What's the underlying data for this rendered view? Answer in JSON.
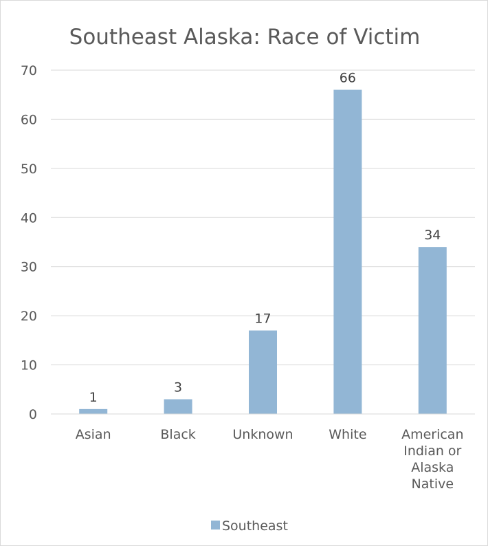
{
  "chart_data": {
    "type": "bar",
    "title": "Southeast Alaska: Race of Victim",
    "categories": [
      "Asian",
      "Black",
      "Unknown",
      "White",
      "American Indian or Alaska Native"
    ],
    "category_label_lines": [
      [
        "Asian"
      ],
      [
        "Black"
      ],
      [
        "Unknown"
      ],
      [
        "White"
      ],
      [
        "American",
        "Indian or",
        "Alaska",
        "Native"
      ]
    ],
    "series": [
      {
        "name": "Southeast",
        "values": [
          1,
          3,
          17,
          66,
          34
        ],
        "color": "#92b6d5"
      }
    ],
    "data_labels": true,
    "xlabel": "",
    "ylabel": "",
    "ylim": [
      0,
      70
    ],
    "yticks": [
      0,
      10,
      20,
      30,
      40,
      50,
      60,
      70
    ],
    "grid": true,
    "legend_position": "bottom",
    "colors": {
      "bar": "#92b6d5",
      "grid": "#d9d9d9",
      "text": "#595959",
      "data_label": "#404040"
    }
  }
}
